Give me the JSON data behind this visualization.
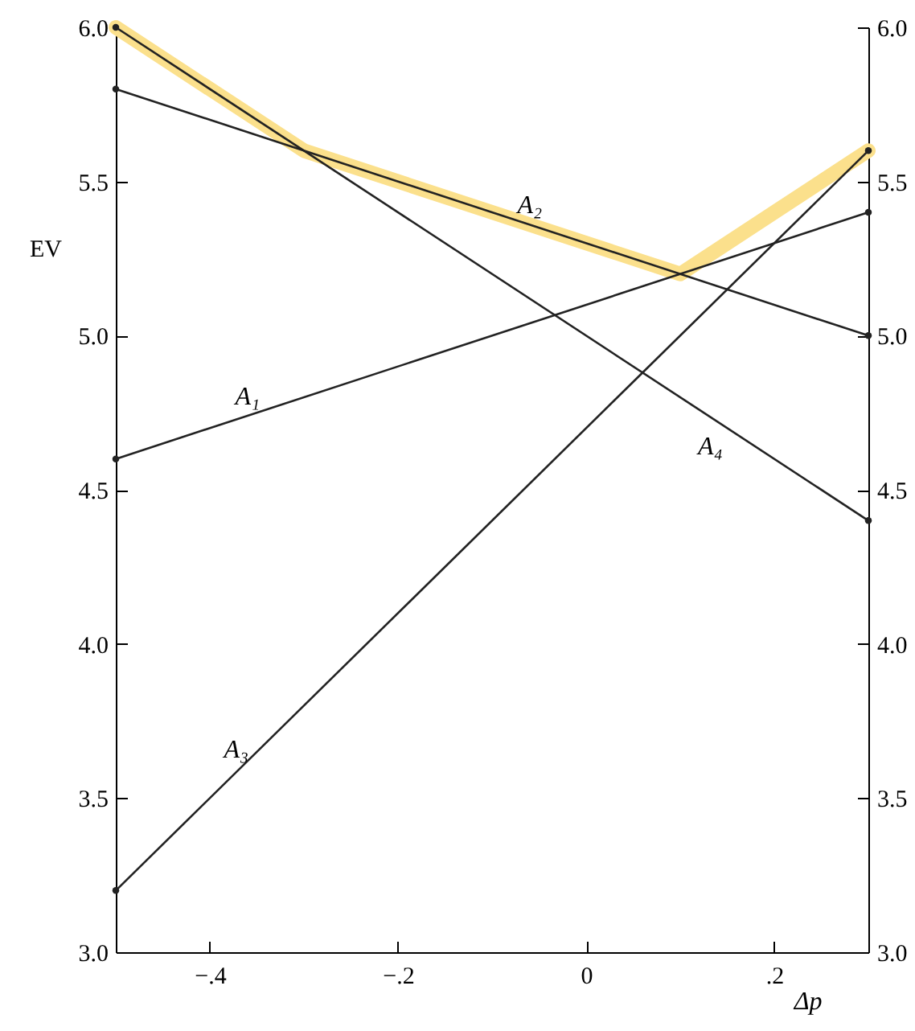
{
  "chart_data": {
    "type": "line",
    "xlabel": "Δp",
    "ylabel": "EV",
    "xlim": [
      -0.5,
      0.3
    ],
    "xticks": [
      {
        "value": -0.4,
        "label": "−.4"
      },
      {
        "value": -0.2,
        "label": "−.2"
      },
      0,
      {
        "value": 0.2,
        "label": ".2"
      }
    ],
    "ylim": [
      3.0,
      6.0
    ],
    "yticks": [
      {
        "value": 3,
        "label": "3.0"
      },
      {
        "value": 3.5,
        "label": "3.5"
      },
      {
        "value": 4,
        "label": "4.0"
      },
      {
        "value": 4.5,
        "label": "4.5"
      },
      {
        "value": 5,
        "label": "5.0"
      },
      {
        "value": 5.5,
        "label": "5.5"
      },
      {
        "value": 6,
        "label": "6.0"
      }
    ],
    "y2lim": [
      3.0,
      6.0
    ],
    "y2ticks": [
      {
        "value": 3,
        "label": "3.0"
      },
      {
        "value": 3.5,
        "label": "3.5"
      },
      {
        "value": 4,
        "label": "4.0"
      },
      {
        "value": 4.5,
        "label": "4.5"
      },
      {
        "value": 5,
        "label": "5.0"
      },
      {
        "value": 5.5,
        "label": "5.5"
      },
      {
        "value": 6,
        "label": "6.0"
      }
    ],
    "grid": false,
    "marker": "circle",
    "series": [
      {
        "color": "#fbe08c",
        "x": [
          -0.5,
          -0.3,
          0.1,
          0.3
        ],
        "values": [
          6.0,
          5.6,
          5.2,
          5.6
        ],
        "marker": "none"
      },
      {
        "name": "A₁",
        "color": "#222222",
        "x": [
          -0.5,
          0.3
        ],
        "values": [
          4.6,
          5.4
        ]
      },
      {
        "name": "A₂",
        "color": "#222222",
        "x": [
          -0.5,
          0.3
        ],
        "values": [
          5.8,
          5.0
        ]
      },
      {
        "name": "A₃",
        "color": "#222222",
        "x": [
          -0.5,
          0.3
        ],
        "values": [
          3.2,
          5.6
        ]
      },
      {
        "name": "A₄",
        "color": "#222222",
        "x": [
          -0.5,
          0.3
        ],
        "values": [
          6.0,
          4.4
        ]
      }
    ]
  }
}
